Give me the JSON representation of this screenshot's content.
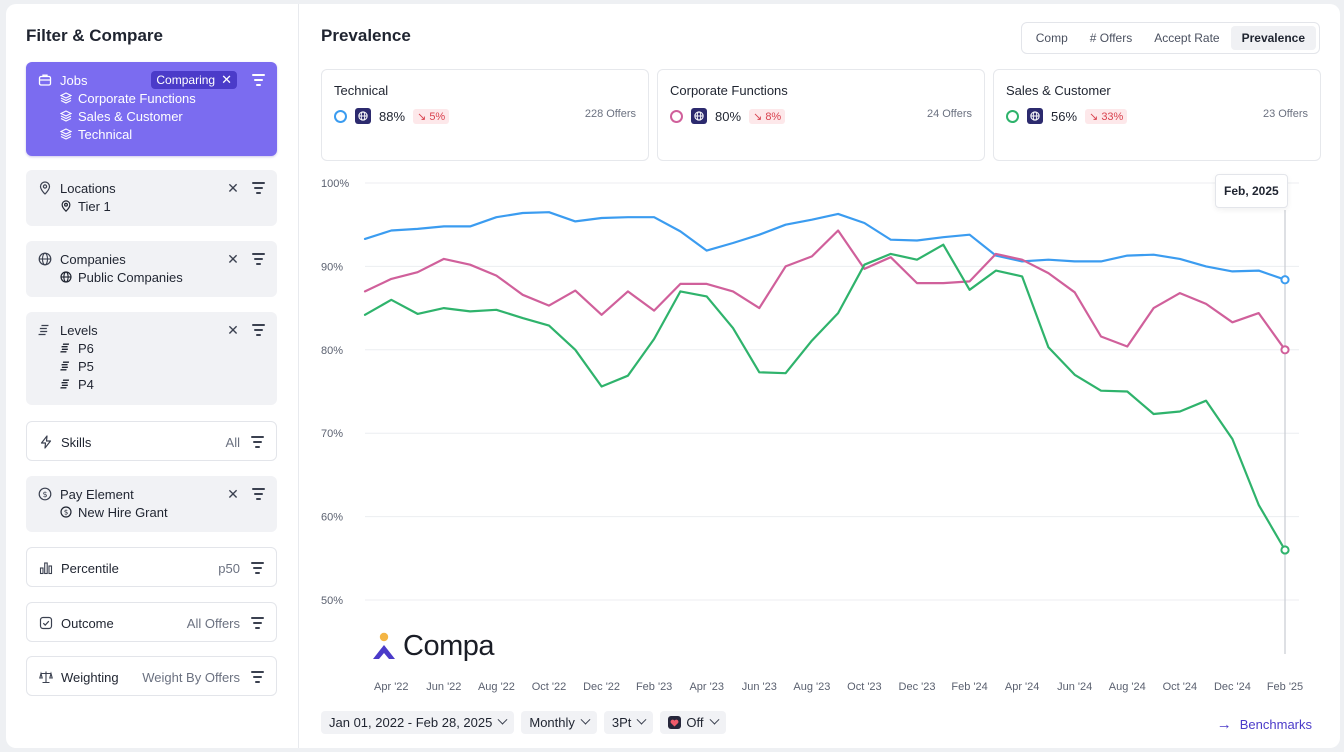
{
  "sidebar": {
    "title": "Filter & Compare",
    "jobs": {
      "label": "Jobs",
      "badge": "Comparing",
      "items": [
        "Corporate Functions",
        "Sales & Customer",
        "Technical"
      ]
    },
    "locations": {
      "label": "Locations",
      "items": [
        "Tier 1"
      ]
    },
    "companies": {
      "label": "Companies",
      "items": [
        "Public Companies"
      ]
    },
    "levels": {
      "label": "Levels",
      "items": [
        "P6",
        "P5",
        "P4"
      ]
    },
    "skills": {
      "label": "Skills",
      "value": "All"
    },
    "pay_element": {
      "label": "Pay Element",
      "items": [
        "New Hire Grant"
      ]
    },
    "percentile": {
      "label": "Percentile",
      "value": "p50"
    },
    "outcome": {
      "label": "Outcome",
      "value": "All Offers"
    },
    "weighting": {
      "label": "Weighting",
      "value": "Weight By Offers"
    }
  },
  "main": {
    "title": "Prevalence",
    "tabs": [
      {
        "label": "Comp",
        "active": false
      },
      {
        "label": "# Offers",
        "active": false
      },
      {
        "label": "Accept Rate",
        "active": false
      },
      {
        "label": "Prevalence",
        "active": true
      }
    ],
    "cards": [
      {
        "title": "Technical",
        "pct": "88%",
        "delta": "5%",
        "offers": "228 Offers",
        "color": "#3b9cf0"
      },
      {
        "title": "Corporate Functions",
        "pct": "80%",
        "delta": "8%",
        "offers": "24 Offers",
        "color": "#d0609b"
      },
      {
        "title": "Sales & Customer",
        "pct": "56%",
        "delta": "33%",
        "offers": "23 Offers",
        "color": "#2fb36c"
      }
    ],
    "tooltip": "Feb, 2025",
    "logo_text": "Compa",
    "bottom": {
      "date_range": "Jan 01, 2022 - Feb 28, 2025",
      "interval": "Monthly",
      "smoothing": "3Pt",
      "toggle": "Off",
      "benchmarks": "Benchmarks"
    }
  },
  "chart_data": {
    "type": "line",
    "x": [
      "Mar '22",
      "Apr '22",
      "May '22",
      "Jun '22",
      "Jul '22",
      "Aug '22",
      "Sep '22",
      "Oct '22",
      "Nov '22",
      "Dec '22",
      "Jan '23",
      "Feb '23",
      "Mar '23",
      "Apr '23",
      "May '23",
      "Jun '23",
      "Jul '23",
      "Aug '23",
      "Sep '23",
      "Oct '23",
      "Nov '23",
      "Dec '23",
      "Jan '24",
      "Feb '24",
      "Mar '24",
      "Apr '24",
      "May '24",
      "Jun '24",
      "Jul '24",
      "Aug '24",
      "Sep '24",
      "Oct '24",
      "Nov '24",
      "Dec '24",
      "Jan '25",
      "Feb '25"
    ],
    "x_tick_labels": [
      "Apr '22",
      "Jun '22",
      "Aug '22",
      "Oct '22",
      "Dec '22",
      "Feb '23",
      "Apr '23",
      "Jun '23",
      "Aug '23",
      "Oct '23",
      "Dec '23",
      "Feb '24",
      "Apr '24",
      "Jun '24",
      "Aug '24",
      "Oct '24",
      "Dec '24",
      "Feb '25"
    ],
    "y_ticks": [
      "100%",
      "90%",
      "80%",
      "70%",
      "60%",
      "50%"
    ],
    "ylim": [
      50,
      100
    ],
    "grid": true,
    "series": [
      {
        "name": "Technical",
        "color": "#3b9cf0",
        "values": [
          93.3,
          94.3,
          94.5,
          94.8,
          94.8,
          95.9,
          96.4,
          96.5,
          95.4,
          95.8,
          95.9,
          95.9,
          94.2,
          91.9,
          92.8,
          93.8,
          95.0,
          95.6,
          96.3,
          95.2,
          93.2,
          93.1,
          93.5,
          93.8,
          91.3,
          90.6,
          90.8,
          90.6,
          90.6,
          91.3,
          91.4,
          90.9,
          90.0,
          89.4,
          89.5,
          88.4
        ]
      },
      {
        "name": "Corporate Functions",
        "color": "#d0609b",
        "values": [
          87.0,
          88.5,
          89.3,
          90.9,
          90.2,
          88.9,
          86.6,
          85.3,
          87.1,
          84.2,
          87.0,
          84.7,
          87.9,
          87.9,
          87.0,
          85.0,
          90.0,
          91.2,
          94.3,
          89.7,
          91.1,
          88.0,
          88.0,
          88.2,
          91.5,
          90.8,
          89.2,
          86.9,
          81.6,
          80.4,
          85.0,
          86.8,
          85.5,
          83.3,
          84.4,
          80.0
        ]
      },
      {
        "name": "Sales & Customer",
        "color": "#2fb36c",
        "values": [
          84.2,
          86.0,
          84.3,
          85.0,
          84.6,
          84.8,
          83.8,
          82.9,
          80.0,
          75.6,
          76.9,
          81.3,
          87.0,
          86.4,
          82.6,
          77.3,
          77.2,
          81.1,
          84.4,
          90.2,
          91.5,
          90.8,
          92.6,
          87.2,
          89.5,
          88.8,
          80.3,
          77.0,
          75.1,
          75.0,
          72.3,
          72.6,
          73.9,
          69.3,
          61.4,
          56.0
        ]
      }
    ]
  }
}
